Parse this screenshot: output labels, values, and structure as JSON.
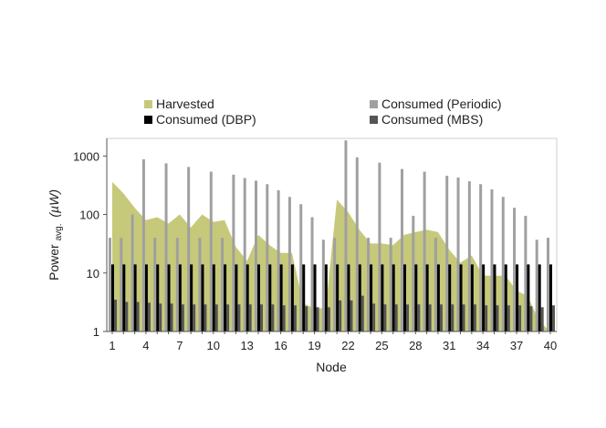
{
  "chart_data": {
    "type": "bar",
    "xlabel": "Node",
    "ylabel_main": "Power",
    "ylabel_sub": "avg.",
    "ylabel_unit": "(µW)",
    "yscale": "log",
    "ylim": [
      1,
      2000
    ],
    "yticks": [
      1,
      10,
      100,
      1000
    ],
    "ytick_labels": [
      "1",
      "10",
      "100",
      "1000"
    ],
    "xticks": [
      1,
      4,
      7,
      10,
      13,
      16,
      19,
      22,
      25,
      28,
      31,
      34,
      37,
      40
    ],
    "xtick_labels": [
      "1",
      "4",
      "7",
      "10",
      "13",
      "16",
      "19",
      "22",
      "25",
      "28",
      "31",
      "34",
      "37",
      "40"
    ],
    "nodes": [
      1,
      2,
      3,
      4,
      5,
      6,
      7,
      8,
      9,
      10,
      11,
      12,
      13,
      14,
      15,
      16,
      17,
      18,
      19,
      20,
      21,
      22,
      23,
      24,
      25,
      26,
      27,
      28,
      29,
      30,
      31,
      32,
      33,
      34,
      35,
      36,
      37,
      38,
      39,
      40
    ],
    "legend": [
      {
        "name": "Harvested",
        "color": "#c6c97a"
      },
      {
        "name": "Consumed (Periodic)",
        "color": "#a0a0a0"
      },
      {
        "name": "Consumed (DBP)",
        "color": "#000000"
      },
      {
        "name": "Consumed (MBS)",
        "color": "#555555"
      }
    ],
    "series": [
      {
        "name": "Harvested",
        "kind": "area",
        "color": "#c6c97a",
        "values": [
          360,
          230,
          130,
          80,
          90,
          70,
          100,
          60,
          100,
          75,
          80,
          28,
          16,
          45,
          30,
          22,
          22,
          3,
          2.5,
          2.5,
          180,
          110,
          55,
          32,
          32,
          30,
          45,
          50,
          55,
          50,
          25,
          15,
          20,
          9,
          9,
          9,
          5,
          4,
          1.5,
          1
        ]
      },
      {
        "name": "Consumed (Periodic)",
        "kind": "bar",
        "color": "#a0a0a0",
        "values": [
          40,
          40,
          100,
          880,
          40,
          750,
          40,
          650,
          40,
          540,
          40,
          480,
          420,
          380,
          330,
          260,
          200,
          150,
          90,
          37,
          40,
          1850,
          950,
          40,
          770,
          40,
          600,
          95,
          540,
          40,
          460,
          430,
          370,
          330,
          270,
          200,
          130,
          95,
          37,
          40
        ]
      },
      {
        "name": "Consumed (DBP)",
        "kind": "bar",
        "color": "#000000",
        "values": [
          14,
          14,
          14,
          14,
          14,
          14,
          14,
          14,
          14,
          14,
          14,
          14,
          14,
          14,
          14,
          14,
          14,
          14,
          14,
          14,
          14,
          14,
          14,
          14,
          14,
          14,
          14,
          14,
          14,
          14,
          14,
          14,
          14,
          14,
          14,
          14,
          14,
          14,
          14,
          14
        ]
      },
      {
        "name": "Consumed (MBS)",
        "kind": "bar",
        "color": "#555555",
        "values": [
          3.5,
          3.2,
          3.2,
          3.1,
          3,
          3,
          2.9,
          2.9,
          2.9,
          2.9,
          2.9,
          2.9,
          2.9,
          2.9,
          2.9,
          2.8,
          2.8,
          2.7,
          2.6,
          2.6,
          3.4,
          3.4,
          4.1,
          3,
          2.9,
          2.9,
          2.9,
          2.9,
          2.9,
          2.9,
          2.9,
          2.9,
          2.9,
          2.8,
          2.8,
          2.8,
          2.8,
          2.7,
          2.6,
          2.8
        ]
      }
    ]
  }
}
